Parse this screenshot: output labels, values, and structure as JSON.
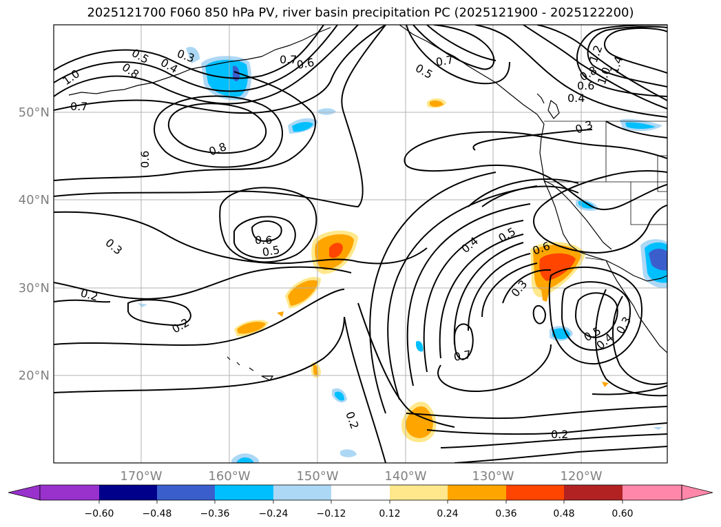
{
  "title": "2025121700 F060 850 hPa PV, river basin precipitation PC (2025121900 - 2025122200)",
  "axes": {
    "lon_labels": [
      "170°W",
      "160°W",
      "150°W",
      "140°W",
      "130°W",
      "120°W"
    ],
    "lat_labels": [
      "50°N",
      "40°N",
      "30°N",
      "20°N"
    ]
  },
  "contour_labels": [
    "1.0",
    "0.5",
    "0.4",
    "0.3",
    "0.8",
    "0.7",
    "0.6",
    "0.5",
    "0.7",
    "1.2",
    "1.4",
    "1.0",
    "0.8",
    "0.6",
    "0.4",
    "0.3",
    "0.7",
    "0.6",
    "0.8",
    "0.6",
    "0.5",
    "0.3",
    "0.2",
    "0.2",
    "0.4",
    "0.5",
    "0.6",
    "0.3",
    "0.7",
    "0.5",
    "0.4",
    "0.3",
    "0.2",
    "0.2"
  ],
  "colorbar": {
    "tick_labels": [
      "−0.60",
      "−0.48",
      "−0.36",
      "−0.24",
      "−0.12",
      "0.12",
      "0.24",
      "0.36",
      "0.48",
      "0.60"
    ],
    "colors": [
      "#9932cc",
      "#00008b",
      "#3a5fcd",
      "#00bfff",
      "#add8f5",
      "#ffffff",
      "#ffe88c",
      "#ffa500",
      "#ff4500",
      "#b22222",
      "#ff88aa"
    ]
  },
  "shading_colors": {
    "neg_light": "#add8f5",
    "neg_mid": "#00bfff",
    "neg_dark": "#3a5fcd",
    "pos_light": "#ffe88c",
    "pos_mid": "#ffa500",
    "pos_dark": "#ff4500"
  }
}
